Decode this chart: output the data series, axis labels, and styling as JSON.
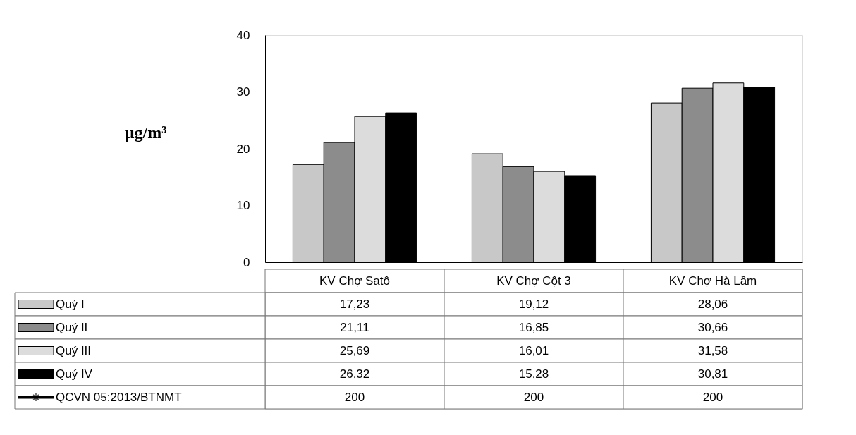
{
  "chart_data": {
    "type": "bar",
    "ylabel": "µg/m³",
    "categories": [
      "KV Chợ Satô",
      "KV Chợ Cột 3",
      "KV Chợ Hà Lầm"
    ],
    "series": [
      {
        "name": "Quý I",
        "color": "#c8c8c8",
        "values": [
          17.23,
          19.12,
          28.06
        ],
        "value_labels": [
          "17,23",
          "19,12",
          "28,06"
        ]
      },
      {
        "name": "Quý II",
        "color": "#8c8c8c",
        "values": [
          21.11,
          16.85,
          30.66
        ],
        "value_labels": [
          "21,11",
          "16,85",
          "30,66"
        ]
      },
      {
        "name": "Quý III",
        "color": "#dcdcdc",
        "values": [
          25.69,
          16.01,
          31.58
        ],
        "value_labels": [
          "25,69",
          "16,01",
          "31,58"
        ]
      },
      {
        "name": "Quý IV",
        "color": "#000000",
        "values": [
          26.32,
          15.28,
          30.81
        ],
        "value_labels": [
          "26,32",
          "15,28",
          "30,81"
        ]
      },
      {
        "name": "QCVN 05:2013/BTNMT",
        "color": "#000000",
        "type": "line",
        "values": [
          null,
          null,
          null
        ],
        "value_labels": [
          "200",
          "200",
          "200"
        ]
      }
    ],
    "ylim": [
      0,
      40
    ],
    "yticks": [
      0,
      10,
      20,
      30,
      40
    ],
    "grid": false,
    "legend": "bottom",
    "marker": "star"
  }
}
